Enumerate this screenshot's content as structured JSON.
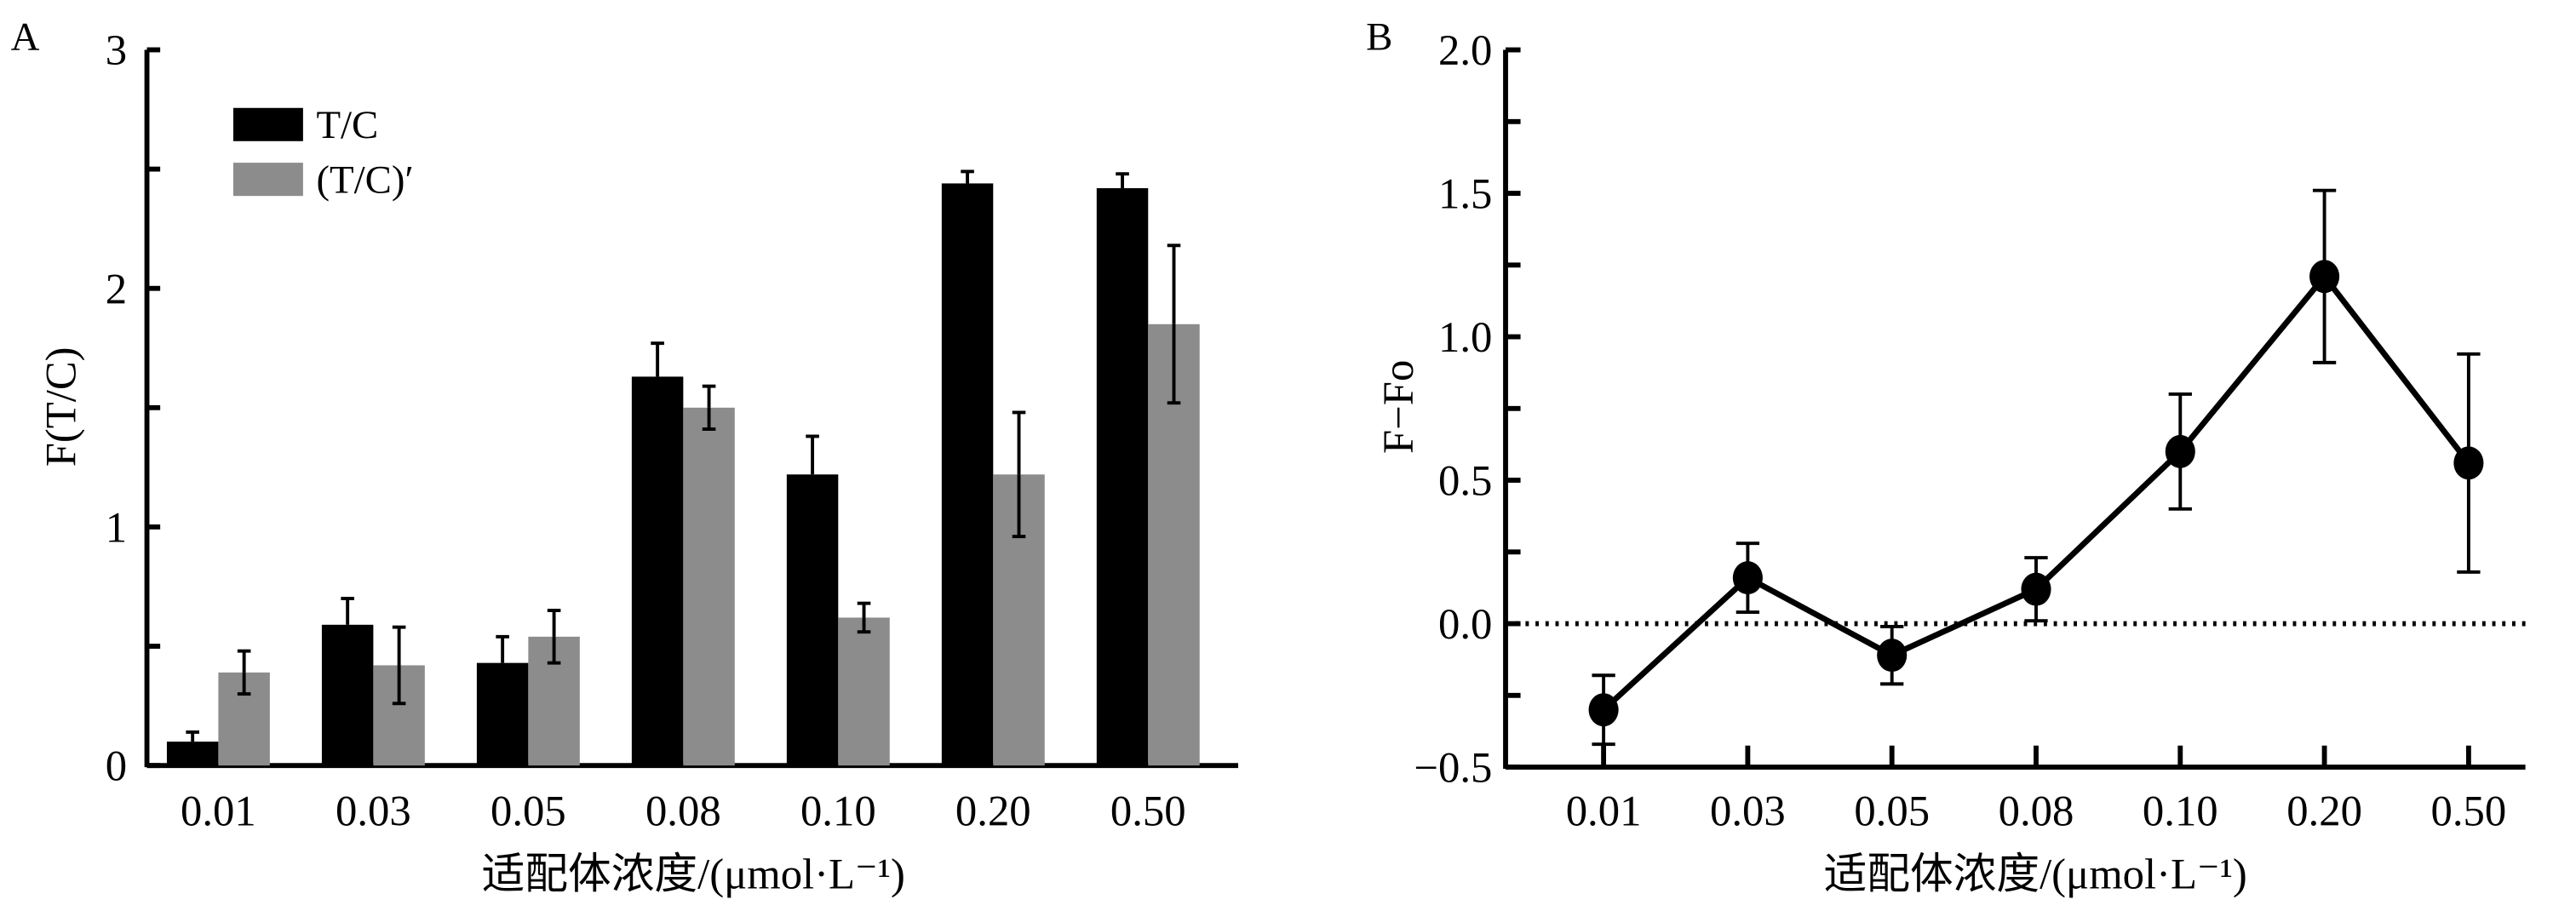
{
  "chart_data": [
    {
      "panel_label": "A",
      "type": "bar",
      "title": "",
      "xlabel": "适配体浓度/(μmol·L⁻¹)",
      "ylabel": "F(T/C)",
      "ylim": [
        0,
        3
      ],
      "yticks": [
        0,
        1,
        2,
        3
      ],
      "ytick_labels": [
        "0",
        "1",
        "2",
        "3"
      ],
      "minor_ytick_step": 0.5,
      "categories": [
        "0.01",
        "0.03",
        "0.05",
        "0.08",
        "0.10",
        "0.20",
        "0.50"
      ],
      "legend_position": "top-left",
      "grid": false,
      "series": [
        {
          "name": "T/C",
          "color": "#000000",
          "values": [
            0.1,
            0.59,
            0.43,
            1.63,
            1.22,
            2.44,
            2.42
          ],
          "errors": [
            0.04,
            0.11,
            0.11,
            0.14,
            0.16,
            0.05,
            0.06
          ]
        },
        {
          "name": "(T/C)′",
          "color": "#8c8c8c",
          "values": [
            0.39,
            0.42,
            0.54,
            1.5,
            0.62,
            1.22,
            1.85
          ],
          "errors": [
            0.09,
            0.16,
            0.11,
            0.09,
            0.06,
            0.26,
            0.33
          ]
        }
      ]
    },
    {
      "panel_label": "B",
      "type": "line",
      "title": "",
      "xlabel": "适配体浓度/(μmol·L⁻¹)",
      "ylabel": "F−Fo",
      "ylim": [
        -0.5,
        2.0
      ],
      "yticks": [
        -0.5,
        0.0,
        0.5,
        1.0,
        1.5,
        2.0
      ],
      "ytick_labels": [
        "−0.5",
        "0.0",
        "0.5",
        "1.0",
        "1.5",
        "2.0"
      ],
      "minor_ytick_step": 0.25,
      "categories": [
        "0.01",
        "0.03",
        "0.05",
        "0.08",
        "0.10",
        "0.20",
        "0.50"
      ],
      "reference_line": 0.0,
      "grid": false,
      "series": [
        {
          "name": "F−Fo",
          "color": "#000000",
          "values": [
            -0.3,
            0.16,
            -0.11,
            0.12,
            0.6,
            1.21,
            0.56
          ],
          "errors": [
            0.12,
            0.12,
            0.1,
            0.11,
            0.2,
            0.3,
            0.38
          ]
        }
      ]
    }
  ]
}
